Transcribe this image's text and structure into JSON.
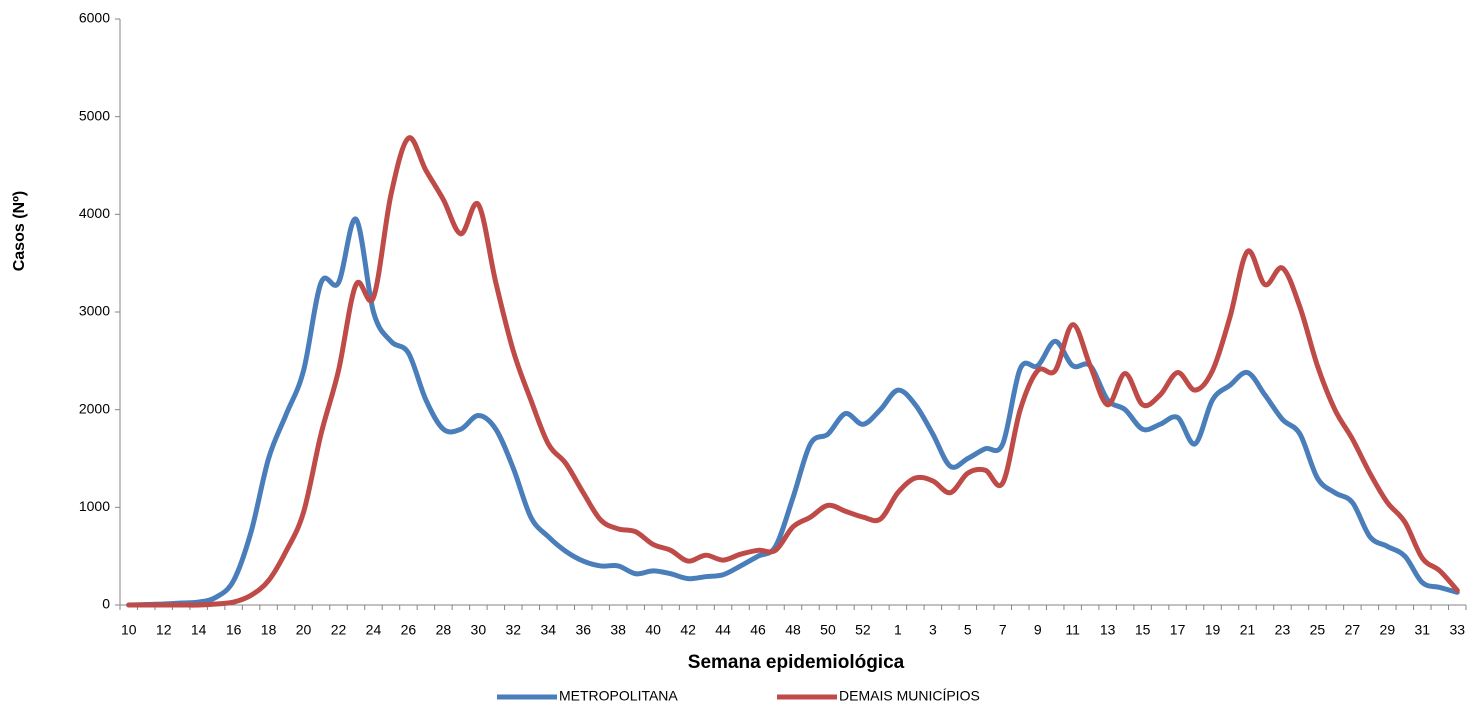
{
  "chart_data": {
    "type": "line",
    "y_label": "Casos (Nº)",
    "x_label": "Semana epidemiológica",
    "categories": [
      "10",
      null,
      "12",
      null,
      "14",
      null,
      "16",
      null,
      "18",
      null,
      "20",
      null,
      "22",
      null,
      "24",
      null,
      "26",
      null,
      "28",
      null,
      "30",
      null,
      "32",
      null,
      "34",
      null,
      "36",
      null,
      "38",
      null,
      "40",
      null,
      "42",
      null,
      "44",
      null,
      "46",
      null,
      "48",
      null,
      "50",
      null,
      "52",
      null,
      "1",
      null,
      "3",
      null,
      "5",
      null,
      "7",
      null,
      "9",
      null,
      "11",
      null,
      "13",
      null,
      "15",
      null,
      "17",
      null,
      "19",
      null,
      "21",
      null,
      "23",
      null,
      "25",
      null,
      "27",
      null,
      "29",
      null,
      "31",
      null,
      "33"
    ],
    "series": [
      {
        "name": "METROPOLITANA",
        "color": "#4a7ebb",
        "values": [
          0,
          5,
          10,
          20,
          30,
          80,
          250,
          750,
          1500,
          1950,
          2400,
          3300,
          3300,
          3950,
          3000,
          2700,
          2580,
          2100,
          1800,
          1800,
          1940,
          1800,
          1400,
          900,
          700,
          550,
          450,
          400,
          400,
          320,
          350,
          320,
          270,
          290,
          310,
          400,
          500,
          600,
          1100,
          1650,
          1750,
          1960,
          1850,
          2000,
          2200,
          2050,
          1750,
          1420,
          1500,
          1600,
          1650,
          2420,
          2450,
          2700,
          2450,
          2450,
          2100,
          2000,
          1800,
          1850,
          1920,
          1650,
          2100,
          2250,
          2380,
          2150,
          1900,
          1750,
          1300,
          1150,
          1050,
          700,
          600,
          500,
          230,
          180,
          130
        ]
      },
      {
        "name": "DEMAIS MUNICÍPIOS",
        "color": "#be4b48",
        "values": [
          0,
          0,
          0,
          0,
          0,
          10,
          30,
          100,
          250,
          550,
          950,
          1750,
          2400,
          3280,
          3150,
          4200,
          4780,
          4450,
          4150,
          3800,
          4100,
          3300,
          2600,
          2100,
          1650,
          1450,
          1150,
          870,
          780,
          750,
          620,
          560,
          450,
          510,
          460,
          520,
          560,
          560,
          800,
          900,
          1020,
          960,
          900,
          880,
          1150,
          1300,
          1270,
          1150,
          1350,
          1380,
          1250,
          2000,
          2400,
          2400,
          2870,
          2450,
          2050,
          2370,
          2050,
          2150,
          2380,
          2200,
          2400,
          2950,
          3620,
          3280,
          3450,
          3050,
          2450,
          2000,
          1700,
          1350,
          1050,
          850,
          480,
          350,
          150
        ]
      }
    ],
    "ylim": [
      0,
      6000
    ],
    "yticks": [
      0,
      1000,
      2000,
      3000,
      4000,
      5000,
      6000
    ],
    "grid": false
  }
}
